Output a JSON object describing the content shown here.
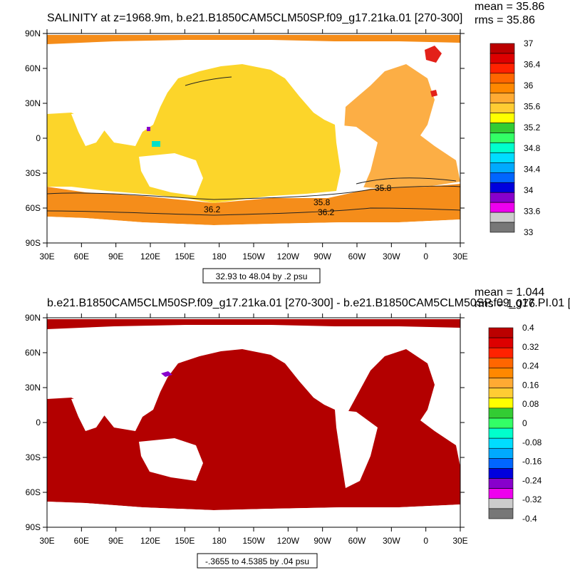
{
  "panels": [
    {
      "title": "SALINITY at z=1968.9m, b.e21.B1850CAM5CLM50SP.f09_g17.21ka.01 [270-300]",
      "stats": [
        "mean = 35.86",
        "rms = 35.86"
      ],
      "range_label": "32.93 to 48.04 by .2 psu",
      "colorbar_labels": [
        "37",
        "36.4",
        "36",
        "35.6",
        "35.2",
        "34.8",
        "34.4",
        "34",
        "33.6",
        "33"
      ],
      "contour_labels": [
        "35.8",
        "35.8",
        "36.2",
        "36.2",
        "35.8"
      ]
    },
    {
      "title": "b.e21.B1850CAM5CLM50SP.f09_g17.21ka.01 [270-300] - b.e21.B1850CAM5CLM50SP.f09_g17.PI.01 [",
      "stats": [
        "mean = 1.044",
        "rms = 1.076"
      ],
      "range_label": "-.3655 to 4.5385 by .04 psu",
      "colorbar_labels": [
        "0.4",
        "0.32",
        "0.24",
        "0.16",
        "0.08",
        "0",
        "-0.08",
        "-0.16",
        "-0.24",
        "-0.32",
        "-0.4"
      ]
    }
  ],
  "axes": {
    "x_ticks": [
      "30E",
      "60E",
      "90E",
      "120E",
      "150E",
      "180",
      "150W",
      "120W",
      "90W",
      "60W",
      "30W",
      "0",
      "30E"
    ],
    "y_ticks": [
      "90N",
      "60N",
      "30N",
      "0",
      "30S",
      "60S",
      "90S"
    ]
  },
  "colors": {
    "bar_top": [
      "#bb0000",
      "#dd0000",
      "#ff2200",
      "#ff6600",
      "#ff8800",
      "#ffaa33",
      "#ffcc33",
      "#ffff00",
      "#33cc33",
      "#33ff66",
      "#00ffcc",
      "#00ddff",
      "#00aaff",
      "#0066ff",
      "#0000dd",
      "#8800cc",
      "#ee00ee",
      "#cccccc",
      "#777777"
    ],
    "bar_bottom": [
      "#bb0000",
      "#dd0000",
      "#ff2200",
      "#ff6600",
      "#ff8800",
      "#ffaa33",
      "#ffcc33",
      "#ffff00",
      "#33cc33",
      "#33ff66",
      "#00ffcc",
      "#00ddff",
      "#00aaff",
      "#0066ff",
      "#0000dd",
      "#8800cc",
      "#ee00ee",
      "#cccccc",
      "#777777"
    ],
    "pacific_indian": "#fcd52a",
    "atlantic": "#fcae45",
    "southern": "#f58d1a",
    "arctic": "#f58d1a",
    "mediterranean": "#e32119",
    "anomaly": "#b30000"
  },
  "chart_data": [
    {
      "type": "heatmap",
      "title": "SALINITY at z=1968.9m, b.e21.B1850CAM5CLM50SP.f09_g17.21ka.01 [270-300]",
      "projection": "cylindrical equidistant, centered on 180",
      "xlim_lon": [
        30,
        390
      ],
      "ylim_lat": [
        -90,
        90
      ],
      "units": "psu",
      "mean": 35.86,
      "rms": 35.86,
      "contour_levels": [
        32.93,
        48.04,
        0.2
      ],
      "colorbar_boundaries": [
        33,
        33.2,
        33.4,
        33.6,
        33.8,
        34,
        34.2,
        34.4,
        34.6,
        34.8,
        35,
        35.2,
        35.4,
        35.6,
        35.8,
        36,
        36.2,
        36.4,
        36.6,
        36.8,
        37
      ],
      "regions_psu": {
        "Pacific & Indian": 35.7,
        "Atlantic": 36.1,
        "Southern Ocean": 36.3,
        "Arctic": 36.4,
        "Mediterranean": 36.9
      },
      "contour_line_labels": [
        35.8,
        35.8,
        36.2,
        36.2,
        35.8
      ]
    },
    {
      "type": "heatmap",
      "title": "b.e21.B1850CAM5CLM50SP.f09_g17.21ka.01 [270-300] - b.e21.B1850CAM5CLM50SP.f09_g17.PI.01 [",
      "projection": "cylindrical equidistant, centered on 180",
      "xlim_lon": [
        30,
        390
      ],
      "ylim_lat": [
        -90,
        90
      ],
      "units": "psu",
      "mean": 1.044,
      "rms": 1.076,
      "contour_levels": [
        -0.3655,
        4.5385,
        0.04
      ],
      "colorbar_boundaries": [
        -0.4,
        -0.32,
        -0.24,
        -0.16,
        -0.08,
        0,
        0.08,
        0.16,
        0.24,
        0.32,
        0.4
      ],
      "regions_psu": {
        "Global ocean": ">0.4",
        "Western Pacific patch": -0.26
      }
    }
  ]
}
